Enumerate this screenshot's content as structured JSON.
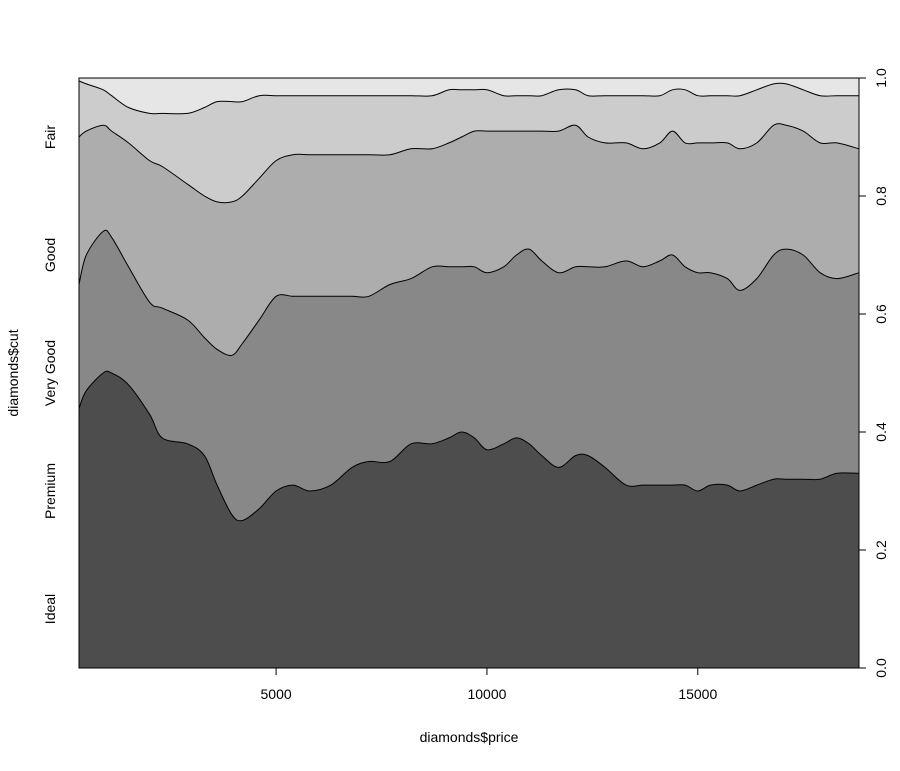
{
  "chart_data": {
    "type": "area",
    "subtype": "conditional-density",
    "xlabel": "diamonds$price",
    "ylabel": "diamonds$cut",
    "xlim": [
      326,
      18823
    ],
    "ylim": [
      0,
      1
    ],
    "x_ticks": [
      5000,
      10000,
      15000
    ],
    "y_ticks": [
      0.0,
      0.2,
      0.4,
      0.6,
      0.8,
      1.0
    ],
    "y_tick_labels": [
      "0.0",
      "0.2",
      "0.4",
      "0.6",
      "0.8",
      "1.0"
    ],
    "categories": [
      "Ideal",
      "Premium",
      "Very Good",
      "Good",
      "Fair"
    ],
    "category_label_positions": [
      0.1,
      0.3,
      0.5,
      0.7,
      0.9
    ],
    "colors": [
      "#4d4d4d",
      "#888888",
      "#adadad",
      "#cccccc",
      "#e6e6e6"
    ],
    "x": [
      326,
      500,
      900,
      1100,
      1500,
      2000,
      2300,
      2900,
      3300,
      3600,
      3950,
      4200,
      4600,
      5000,
      5400,
      5800,
      6300,
      6800,
      7200,
      7700,
      8200,
      8700,
      9100,
      9400,
      9700,
      10000,
      10400,
      10700,
      11000,
      11300,
      11700,
      12100,
      12400,
      12800,
      13300,
      13700,
      14100,
      14400,
      14700,
      15000,
      15300,
      15700,
      16000,
      16400,
      16800,
      17100,
      17500,
      17900,
      18300,
      18823
    ],
    "cumulative_boundaries": [
      {
        "name": "Ideal",
        "values": [
          0.44,
          0.47,
          0.5,
          0.5,
          0.48,
          0.43,
          0.39,
          0.38,
          0.36,
          0.31,
          0.26,
          0.25,
          0.27,
          0.3,
          0.31,
          0.3,
          0.31,
          0.34,
          0.35,
          0.35,
          0.38,
          0.38,
          0.39,
          0.4,
          0.39,
          0.37,
          0.38,
          0.39,
          0.38,
          0.36,
          0.34,
          0.36,
          0.36,
          0.34,
          0.31,
          0.31,
          0.31,
          0.31,
          0.31,
          0.3,
          0.31,
          0.31,
          0.3,
          0.31,
          0.32,
          0.32,
          0.32,
          0.32,
          0.33,
          0.33
        ]
      },
      {
        "name": "Premium",
        "values": [
          0.65,
          0.7,
          0.74,
          0.73,
          0.68,
          0.62,
          0.61,
          0.59,
          0.56,
          0.54,
          0.53,
          0.55,
          0.59,
          0.63,
          0.63,
          0.63,
          0.63,
          0.63,
          0.63,
          0.65,
          0.66,
          0.68,
          0.68,
          0.68,
          0.68,
          0.67,
          0.68,
          0.7,
          0.71,
          0.69,
          0.67,
          0.68,
          0.68,
          0.68,
          0.69,
          0.68,
          0.69,
          0.7,
          0.68,
          0.67,
          0.67,
          0.66,
          0.64,
          0.66,
          0.7,
          0.71,
          0.7,
          0.67,
          0.66,
          0.67
        ]
      },
      {
        "name": "Very Good",
        "values": [
          0.9,
          0.91,
          0.92,
          0.91,
          0.89,
          0.86,
          0.85,
          0.82,
          0.8,
          0.79,
          0.79,
          0.8,
          0.83,
          0.86,
          0.87,
          0.87,
          0.87,
          0.87,
          0.87,
          0.87,
          0.88,
          0.88,
          0.89,
          0.9,
          0.91,
          0.91,
          0.91,
          0.91,
          0.91,
          0.91,
          0.91,
          0.92,
          0.9,
          0.89,
          0.89,
          0.88,
          0.89,
          0.91,
          0.89,
          0.89,
          0.89,
          0.89,
          0.88,
          0.89,
          0.92,
          0.92,
          0.91,
          0.89,
          0.89,
          0.88
        ]
      },
      {
        "name": "Good",
        "values": [
          0.995,
          0.99,
          0.98,
          0.97,
          0.95,
          0.94,
          0.94,
          0.94,
          0.95,
          0.96,
          0.96,
          0.96,
          0.97,
          0.97,
          0.97,
          0.97,
          0.97,
          0.97,
          0.97,
          0.97,
          0.97,
          0.97,
          0.98,
          0.98,
          0.98,
          0.98,
          0.97,
          0.97,
          0.97,
          0.97,
          0.98,
          0.98,
          0.97,
          0.97,
          0.97,
          0.97,
          0.97,
          0.98,
          0.98,
          0.97,
          0.97,
          0.97,
          0.97,
          0.98,
          0.99,
          0.99,
          0.98,
          0.97,
          0.97,
          0.97
        ]
      },
      {
        "name": "Fair",
        "values": [
          1,
          1,
          1,
          1,
          1,
          1,
          1,
          1,
          1,
          1,
          1,
          1,
          1,
          1,
          1,
          1,
          1,
          1,
          1,
          1,
          1,
          1,
          1,
          1,
          1,
          1,
          1,
          1,
          1,
          1,
          1,
          1,
          1,
          1,
          1,
          1,
          1,
          1,
          1,
          1,
          1,
          1,
          1,
          1,
          1,
          1,
          1,
          1,
          1,
          1
        ]
      }
    ]
  }
}
